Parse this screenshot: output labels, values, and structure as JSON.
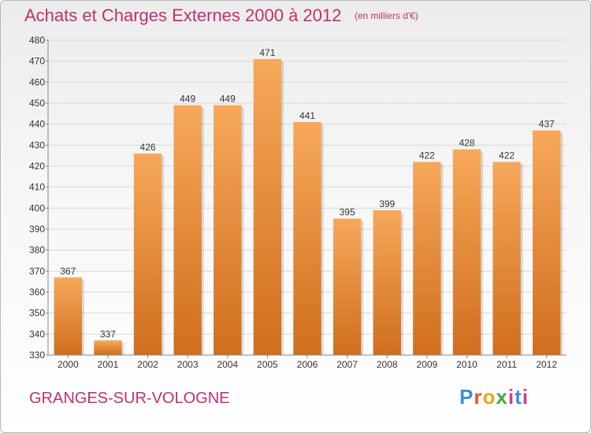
{
  "title": "Achats et Charges Externes 2000 à 2012",
  "unit": "(en milliers d'€)",
  "commune": "GRANGES-SUR-VOLOGNE",
  "brand": "Proxiti",
  "colors": {
    "title": "#c0306e",
    "bar_light": "#f7a85a",
    "bar_dark": "#d06e1e",
    "grid": "#d9d9d9"
  },
  "chart_data": {
    "type": "bar",
    "categories": [
      "2000",
      "2001",
      "2002",
      "2003",
      "2004",
      "2005",
      "2006",
      "2007",
      "2008",
      "2009",
      "2010",
      "2011",
      "2012"
    ],
    "values": [
      367,
      337,
      426,
      449,
      449,
      471,
      441,
      395,
      399,
      422,
      428,
      422,
      437
    ],
    "ylim": [
      330,
      480
    ],
    "yticks": [
      330,
      340,
      350,
      360,
      370,
      380,
      390,
      400,
      410,
      420,
      430,
      440,
      450,
      460,
      470,
      480
    ],
    "grid": true,
    "legend": "none"
  }
}
